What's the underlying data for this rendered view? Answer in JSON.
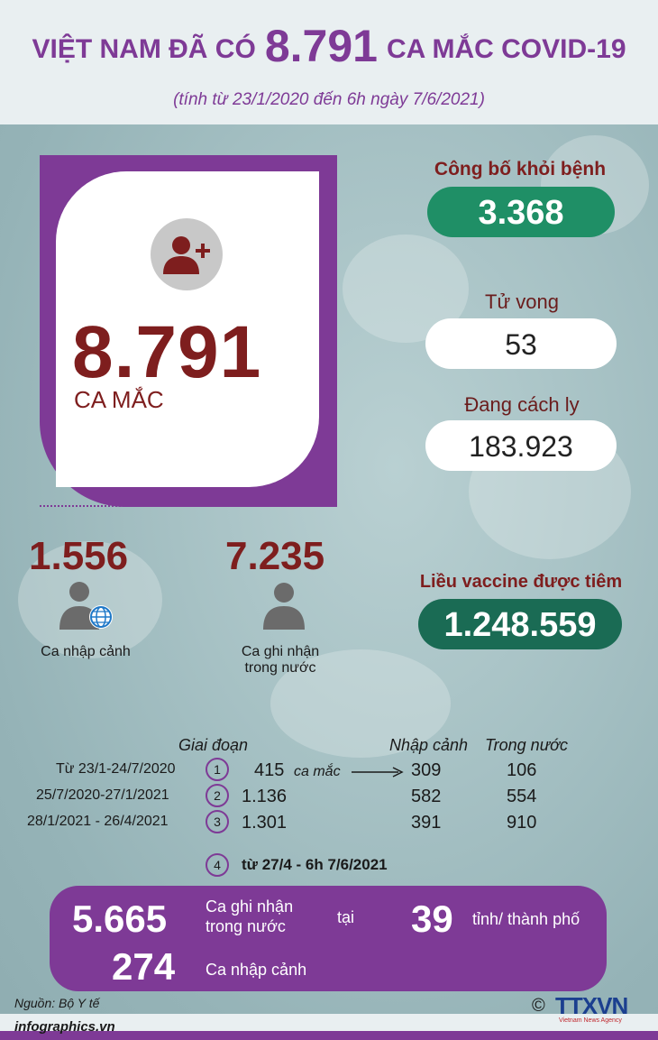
{
  "header": {
    "title_prefix": "VIỆT NAM ĐÃ CÓ",
    "title_number": "8.791",
    "title_suffix": "CA MẮC COVID-19",
    "subtitle": "(tính từ 23/1/2020 đến 6h ngày 7/6/2021)"
  },
  "main_card": {
    "icon": "person-add-icon",
    "value": "8.791",
    "label": "CA MẮC"
  },
  "stats": {
    "recovered": {
      "label": "Công bố khỏi bệnh",
      "value": "3.368"
    },
    "deaths": {
      "label": "Tử vong",
      "value": "53"
    },
    "quarantine": {
      "label": "Đang cách ly",
      "value": "183.923"
    },
    "vaccine": {
      "label": "Liều  vaccine được tiêm",
      "value": "1.248.559"
    }
  },
  "breakdown": {
    "imported": {
      "value": "1.556",
      "label": "Ca nhập cảnh",
      "icon": "person-globe-icon"
    },
    "domestic": {
      "value": "7.235",
      "label_line1": "Ca ghi nhận",
      "label_line2": "trong nước",
      "icon": "person-icon"
    }
  },
  "phases": {
    "header_phase": "Giai đoạn",
    "header_imported": "Nhập cảnh",
    "header_domestic": "Trong nước",
    "case_unit": "ca mắc",
    "rows": [
      {
        "range": "Từ 23/1-24/7/2020",
        "num": "1",
        "total": "415",
        "imported": "309",
        "domestic": "106"
      },
      {
        "range": "25/7/2020-27/1/2021",
        "num": "2",
        "total": "1.136",
        "imported": "582",
        "domestic": "554"
      },
      {
        "range": "28/1/2021 - 26/4/2021",
        "num": "3",
        "total": "1.301",
        "imported": "391",
        "domestic": "910"
      }
    ],
    "phase4": {
      "num": "4",
      "label": "từ 27/4 - 6h 7/6/2021"
    }
  },
  "phase4_box": {
    "domestic_value": "5.665",
    "domestic_label_line1": "Ca ghi nhận",
    "domestic_label_line2": "trong nước",
    "at": "tại",
    "provinces_value": "39",
    "provinces_label": "tỉnh/ thành phố",
    "imported_value": "274",
    "imported_label": "Ca nhập cảnh"
  },
  "footer": {
    "source": "Nguồn: Bộ Y tế",
    "site": "infographics.vn",
    "copyright": "©",
    "logo_text": "TTXVN",
    "logo_sub": "Vietnam News Agency"
  },
  "colors": {
    "purple": "#7e3a96",
    "maroon": "#7e1e1e",
    "green": "#1f8f66",
    "dark_green": "#1a6b54"
  }
}
